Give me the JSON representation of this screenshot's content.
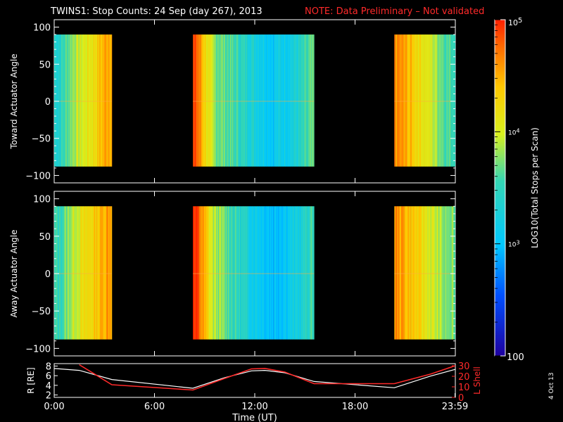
{
  "header": {
    "title": "TWINS1: Stop Counts: 24 Sep (day 267), 2013",
    "note": "NOTE: Data Preliminary – Not validated"
  },
  "footer": {
    "date_stamp": "4 Oct 13"
  },
  "colors": {
    "note": "#ff2a2a",
    "background": "#000000",
    "data_gap": "#000000"
  },
  "chart_data": [
    {
      "type": "heatmap",
      "panel": "top",
      "ylabel": "Toward Actuator Angle",
      "yticks": [
        "100",
        "50",
        "0",
        "−50",
        "−100"
      ],
      "ylim": [
        -110,
        110
      ],
      "angle_coverage": [
        -88,
        90
      ],
      "data_windows_hours": [
        [
          0.0,
          3.45
        ],
        [
          8.3,
          15.55
        ],
        [
          20.35,
          23.99
        ]
      ],
      "log_counts_by_hour_approx": [
        {
          "hour": 0.3,
          "log": 3.4
        },
        {
          "hour": 1.2,
          "log": 3.9
        },
        {
          "hour": 2.3,
          "log": 4.2
        },
        {
          "hour": 3.2,
          "log": 4.6
        },
        {
          "hour": 8.5,
          "log": 4.8
        },
        {
          "hour": 9.5,
          "log": 3.8
        },
        {
          "hour": 11.5,
          "log": 3.4
        },
        {
          "hour": 13.0,
          "log": 3.1
        },
        {
          "hour": 14.5,
          "log": 3.3
        },
        {
          "hour": 15.3,
          "log": 3.6
        },
        {
          "hour": 20.6,
          "log": 4.6
        },
        {
          "hour": 22.0,
          "log": 4.2
        },
        {
          "hour": 23.5,
          "log": 3.6
        }
      ]
    },
    {
      "type": "heatmap",
      "panel": "middle",
      "ylabel": "Away Actuator Angle",
      "yticks": [
        "100",
        "50",
        "0",
        "−50",
        "−100"
      ],
      "ylim": [
        -110,
        110
      ],
      "angle_coverage": [
        -88,
        90
      ],
      "data_windows_hours": [
        [
          0.0,
          3.45
        ],
        [
          8.3,
          15.55
        ],
        [
          20.35,
          23.99
        ]
      ],
      "log_counts_by_hour_approx": [
        {
          "hour": 0.3,
          "log": 3.5
        },
        {
          "hour": 1.2,
          "log": 4.0
        },
        {
          "hour": 2.3,
          "log": 4.3
        },
        {
          "hour": 3.2,
          "log": 4.6
        },
        {
          "hour": 8.5,
          "log": 4.9
        },
        {
          "hour": 9.5,
          "log": 3.9
        },
        {
          "hour": 11.5,
          "log": 3.3
        },
        {
          "hour": 13.0,
          "log": 3.0
        },
        {
          "hour": 14.5,
          "log": 3.2
        },
        {
          "hour": 15.3,
          "log": 3.5
        },
        {
          "hour": 20.6,
          "log": 4.6
        },
        {
          "hour": 22.0,
          "log": 4.2
        },
        {
          "hour": 23.5,
          "log": 3.7
        }
      ]
    },
    {
      "type": "line",
      "panel": "bottom",
      "x": [
        0,
        1.5,
        3.45,
        8.3,
        10.2,
        11.8,
        12.6,
        13.8,
        15.55,
        20.35,
        22.5,
        23.99
      ],
      "series": [
        {
          "name": "R [RE]",
          "color": "#ffffff",
          "axis": "left",
          "values": [
            7.5,
            7.1,
            5.2,
            3.4,
            5.6,
            7.0,
            7.1,
            6.6,
            4.8,
            3.5,
            5.9,
            7.3
          ]
        },
        {
          "name": "L Shell",
          "color": "#ff2a2a",
          "axis": "right",
          "values": [
            null,
            31,
            12,
            7,
            18,
            27,
            27.5,
            24,
            13,
            13,
            22,
            30
          ]
        }
      ],
      "y_left_label": "R [RE]",
      "y_left_ticks": [
        "2",
        "4",
        "6",
        "8"
      ],
      "y_left_lim": [
        1.5,
        8.5
      ],
      "y_right_label": "L Shell",
      "y_right_ticks": [
        "0",
        "10",
        "20",
        "30"
      ],
      "y_right_lim": [
        0,
        32
      ],
      "xticks": [
        "0:00",
        "6:00",
        "12:00",
        "18:00",
        "23:59"
      ],
      "xtick_hours": [
        0,
        6,
        12,
        18,
        23.98
      ],
      "xlim": [
        0,
        24
      ],
      "xlabel": "Time (UT)"
    }
  ],
  "colorbar": {
    "label": "LOG10(Total Stops per Scan)",
    "ticks": [
      "10^5",
      "10^4",
      "10^3",
      "100"
    ],
    "tick_values": [
      5,
      4,
      3,
      2
    ],
    "range": [
      2,
      5
    ]
  }
}
